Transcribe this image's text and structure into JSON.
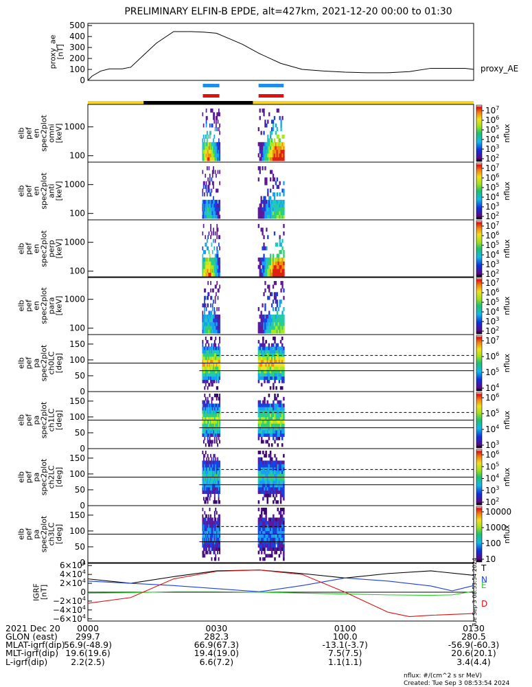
{
  "title": "PRELIMINARY ELFIN-B EPDE, alt=427km, 2021-12-20 00:00 to 01:30",
  "colors": {
    "ae_line": "#000000",
    "blue_bar": "#1f8cf0",
    "red_bar": "#e01010",
    "yellow_bar": "#f5d41a",
    "black_bar": "#000000",
    "igrf_T": "#000000",
    "igrf_N": "#1a3fe0",
    "igrf_E": "#22cc22",
    "igrf_D": "#dd1111"
  },
  "ae_panel": {
    "ylabel_lines": [
      "proxy_ae",
      "[nT]"
    ],
    "side_label": "proxy_AE",
    "yticks": [
      "0",
      "100",
      "200",
      "300",
      "400",
      "500"
    ]
  },
  "spec_panels": [
    {
      "ylabel_lines": [
        "elb",
        "pef",
        "en",
        "spec2plot",
        "omni",
        "[keV]"
      ],
      "yticks": [
        "100",
        "1000"
      ],
      "cb_ticks": [
        "10^7",
        "10^6",
        "10^5",
        "10^4",
        "10^3",
        "10^2"
      ],
      "cb_label": "nflux"
    },
    {
      "ylabel_lines": [
        "elb",
        "pef",
        "en",
        "spec2plot",
        "anti",
        "[keV]"
      ],
      "yticks": [
        "100",
        "1000"
      ],
      "cb_ticks": [
        "10^7",
        "10^6",
        "10^5",
        "10^4",
        "10^3",
        "10^2"
      ],
      "cb_label": "nflux"
    },
    {
      "ylabel_lines": [
        "elb",
        "pef",
        "en",
        "spec2plot",
        "perp",
        "[keV]"
      ],
      "yticks": [
        "100",
        "1000"
      ],
      "cb_ticks": [
        "10^7",
        "10^6",
        "10^5",
        "10^4",
        "10^3",
        "10^2"
      ],
      "cb_label": "nflux"
    },
    {
      "ylabel_lines": [
        "elb",
        "pef",
        "en",
        "spec2plot",
        "para",
        "[keV]"
      ],
      "yticks": [
        "100",
        "1000"
      ],
      "cb_ticks": [
        "10^7",
        "10^6",
        "10^5",
        "10^4",
        "10^3",
        "10^2"
      ],
      "cb_label": "nflux"
    }
  ],
  "pa_panels": [
    {
      "ylabel_lines": [
        "elb",
        "pef",
        "pa",
        "spec2plot",
        "ch0LC",
        "[deg]"
      ],
      "yticks": [
        "0",
        "50",
        "100",
        "150"
      ],
      "cb_ticks": [
        "10^7",
        "10^6",
        "10^5",
        "10^4"
      ],
      "cb_label": "nflux"
    },
    {
      "ylabel_lines": [
        "elb",
        "pef",
        "pa",
        "spec2plot",
        "ch1LC",
        "[deg]"
      ],
      "yticks": [
        "0",
        "50",
        "100",
        "150"
      ],
      "cb_ticks": [
        "10^6",
        "10^5",
        "10^4",
        "10^3"
      ],
      "cb_label": "nflux"
    },
    {
      "ylabel_lines": [
        "elb",
        "pef",
        "pa",
        "spec2plot",
        "ch2LC",
        "[deg]"
      ],
      "yticks": [
        "0",
        "50",
        "100",
        "150"
      ],
      "cb_ticks": [
        "10^6",
        "10^5",
        "10^4",
        "10^3",
        "10^2"
      ],
      "cb_label": "nflux"
    },
    {
      "ylabel_lines": [
        "elb",
        "pef",
        "pa",
        "spec2plot",
        "ch3LC",
        "[deg]"
      ],
      "yticks": [
        "0",
        "50",
        "100",
        "150"
      ],
      "cb_ticks": [
        "10000",
        "1000",
        "100",
        "10"
      ],
      "cb_label": "nflux"
    }
  ],
  "igrf_panel": {
    "ylabel_lines": [
      "IGRF",
      "[nT]"
    ],
    "yticks": [
      "6×10^4",
      "4×10^4",
      "2×10^4",
      "0",
      "−2×10^4",
      "−4×10^4",
      "−6×10^4"
    ],
    "legend": [
      "T",
      "N",
      "E",
      "D"
    ],
    "stamp": "Tue Sep  3 08:53:54 2024"
  },
  "footer": {
    "rows": [
      [
        "2021 Dec 20",
        "0000",
        "0030",
        "0100",
        "0130"
      ],
      [
        "GLON (east)",
        "299.7",
        "282.3",
        "100.0",
        "280.5"
      ],
      [
        "MLAT-igrf(dip)",
        "56.9(-48.9)",
        "66.9(67.3)",
        "-13.1(-3.7)",
        "-56.9(-60.3)"
      ],
      [
        "MLT-igrf(dip)",
        "19.6(19.6)",
        "19.4(19.0)",
        "7.5(7.5)",
        "20.6(20.1)"
      ],
      [
        "L-igrf(dip)",
        "2.2(2.5)",
        "6.6(7.2)",
        "1.1(1.1)",
        "3.4(4.4)"
      ]
    ],
    "units_note": "nflux: #/(cm^2 s sr MeV)",
    "created": "Created: Tue Sep  3 08:53:54 2024"
  },
  "chart_data": [
    {
      "type": "line",
      "title": "PRELIMINARY ELFIN-B EPDE, alt=427km, 2021-12-20 00:00 to 01:30",
      "ylabel": "proxy_ae [nT]",
      "xlabel": "",
      "xlim_minutes": [
        0,
        90
      ],
      "ylim": [
        0,
        520
      ],
      "series": [
        {
          "name": "proxy_AE",
          "x": [
            0,
            1,
            3,
            5,
            8,
            10,
            13,
            16,
            20,
            24,
            27,
            30,
            33,
            36,
            40,
            45,
            50,
            55,
            60,
            65,
            70,
            75,
            80,
            85,
            88,
            90
          ],
          "y": [
            0,
            40,
            85,
            105,
            105,
            120,
            230,
            340,
            445,
            445,
            440,
            430,
            380,
            330,
            245,
            155,
            100,
            85,
            75,
            70,
            70,
            80,
            110,
            110,
            110,
            100
          ]
        }
      ]
    },
    {
      "type": "heatmap",
      "ylabel": "elb pef en spec2plot omni/anti/perp/para [keV]",
      "y_scale": "log",
      "ylim": [
        60,
        6000
      ],
      "xlim_minutes": [
        0,
        90
      ],
      "science_zones_minutes": [
        [
          26.5,
          31
        ],
        [
          39.5,
          46
        ]
      ],
      "colorbar": {
        "label": "nflux",
        "range": [
          100,
          10000000
        ]
      }
    },
    {
      "type": "heatmap",
      "ylabel": "elb pef pa spec2plot ch0LC..ch3LC [deg]",
      "ylim": [
        0,
        180
      ],
      "xlim_minutes": [
        0,
        90
      ],
      "science_zones_minutes": [
        [
          26.5,
          31
        ],
        [
          39.5,
          46
        ]
      ],
      "colorbar": {
        "label": "nflux"
      }
    },
    {
      "type": "line",
      "ylabel": "IGRF [nT]",
      "xlim_minutes": [
        0,
        90
      ],
      "ylim": [
        -65000,
        65000
      ],
      "series": [
        {
          "name": "T",
          "x": [
            0,
            10,
            20,
            30,
            40,
            50,
            60,
            70,
            80,
            90
          ],
          "y": [
            30000,
            20000,
            35000,
            48000,
            50000,
            42000,
            32000,
            42000,
            48000,
            38000
          ]
        },
        {
          "name": "N",
          "x": [
            0,
            10,
            20,
            30,
            40,
            50,
            60,
            70,
            80,
            85,
            90
          ],
          "y": [
            25000,
            20000,
            15000,
            8000,
            1000,
            15000,
            32000,
            25000,
            14000,
            3000,
            15000
          ]
        },
        {
          "name": "E",
          "x": [
            0,
            10,
            20,
            30,
            40,
            50,
            60,
            70,
            80,
            85,
            90
          ],
          "y": [
            -2000,
            -1000,
            1000,
            1000,
            0,
            -2000,
            -4000,
            -6000,
            -7000,
            -6000,
            2000
          ]
        },
        {
          "name": "D",
          "x": [
            0,
            10,
            20,
            30,
            40,
            50,
            60,
            70,
            75,
            80,
            90
          ],
          "y": [
            -25000,
            -12000,
            30000,
            47000,
            50000,
            40000,
            0,
            -45000,
            -55000,
            -52000,
            -48000
          ]
        }
      ]
    }
  ]
}
